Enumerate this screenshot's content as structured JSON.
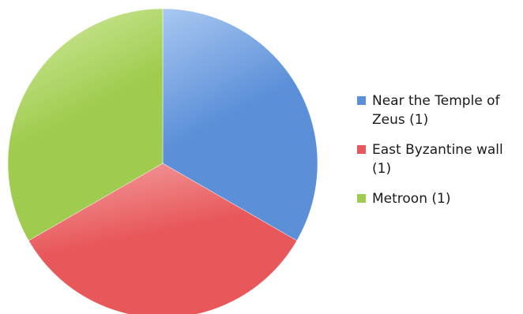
{
  "chart_data": {
    "type": "pie",
    "title": "",
    "legend_position": "right",
    "slices": [
      {
        "label": "Near the Temple of Zeus (1)",
        "value": 1,
        "color": "#5b8fd8",
        "highlight": "#a9c8f2"
      },
      {
        "label": "East Byzantine wall (1)",
        "value": 1,
        "color": "#e8575a",
        "highlight": "#f3a3a3"
      },
      {
        "label": "Metroon (1)",
        "value": 1,
        "color": "#9fcc4e",
        "highlight": "#d6eca6"
      }
    ]
  }
}
